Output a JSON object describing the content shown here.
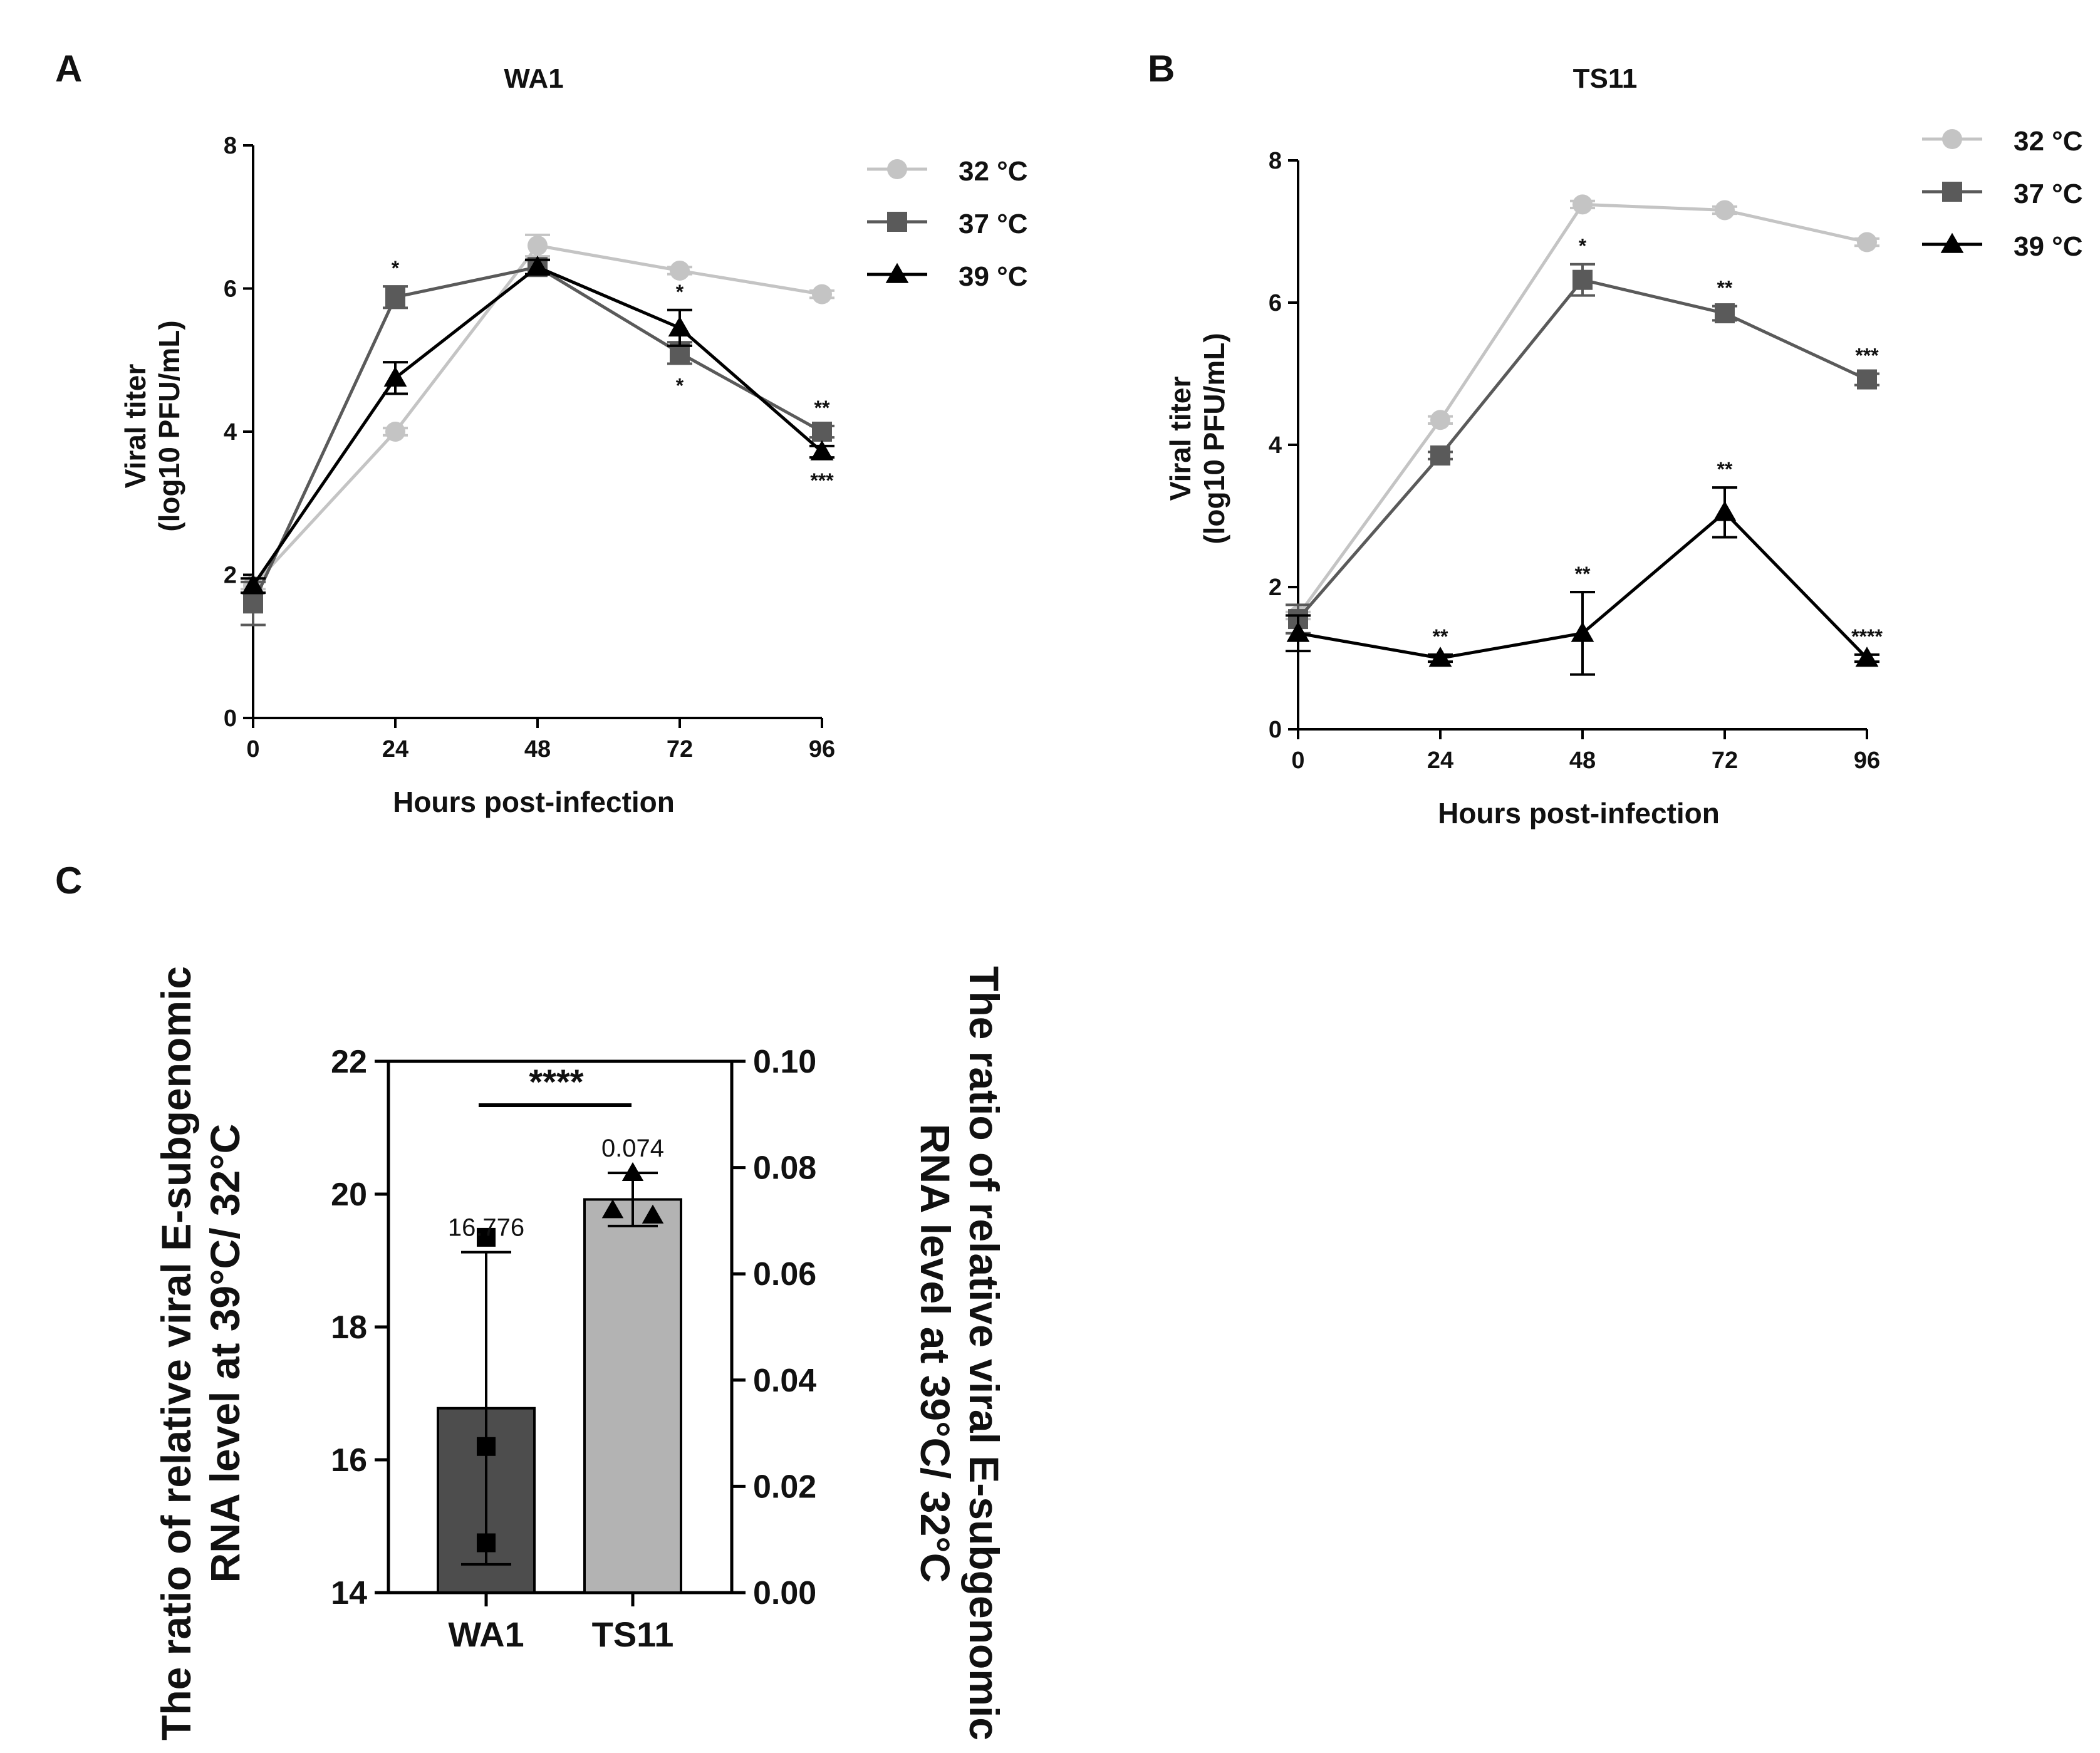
{
  "colors": {
    "c32": "#c4c4c4",
    "c37": "#5a5a5a",
    "c39": "#000000",
    "barWA1": "#4d4d4d",
    "barTS11": "#b3b3b3"
  },
  "legend": [
    "32 °C",
    "37 °C",
    "39 °C"
  ],
  "chart_data": [
    {
      "id": "A",
      "panel_letter": "A",
      "type": "line",
      "title": "WA1",
      "xlabel": "Hours post-infection",
      "ylabel_line1": "Viral titer",
      "ylabel_line2": "(log10 PFU/mL)",
      "x": [
        0,
        24,
        48,
        72,
        96
      ],
      "xticks": [
        "0",
        "24",
        "48",
        "72",
        "96"
      ],
      "yticks": [
        "0",
        "2",
        "4",
        "6",
        "8"
      ],
      "xlim": [
        0,
        96
      ],
      "ylim": [
        0,
        8
      ],
      "legend_position": "right",
      "series": [
        {
          "name": "32 °C",
          "marker": "circle",
          "values": [
            1.85,
            4.0,
            6.6,
            6.25,
            5.92
          ],
          "err": [
            0.05,
            0.05,
            0.15,
            0.05,
            0.05
          ],
          "sig": [
            "",
            "",
            "",
            "",
            ""
          ]
        },
        {
          "name": "37 °C",
          "marker": "square",
          "values": [
            1.6,
            5.88,
            6.3,
            5.1,
            4.0
          ],
          "err": [
            0.3,
            0.15,
            0.1,
            0.15,
            0.08
          ],
          "sig": [
            "",
            "*",
            "",
            "*",
            "**"
          ]
        },
        {
          "name": "39 °C",
          "marker": "triangle",
          "values": [
            1.85,
            4.75,
            6.3,
            5.45,
            3.72
          ],
          "err": [
            0.1,
            0.22,
            0.1,
            0.25,
            0.08
          ],
          "sig": [
            "",
            "",
            "",
            "*",
            "***"
          ]
        }
      ]
    },
    {
      "id": "B",
      "panel_letter": "B",
      "type": "line",
      "title": "TS11",
      "xlabel": "Hours post-infection",
      "ylabel_line1": "Viral titer",
      "ylabel_line2": "(log10 PFU/mL)",
      "x": [
        0,
        24,
        48,
        72,
        96
      ],
      "xticks": [
        "0",
        "24",
        "48",
        "72",
        "96"
      ],
      "yticks": [
        "0",
        "2",
        "4",
        "6",
        "8"
      ],
      "xlim": [
        0,
        96
      ],
      "ylim": [
        0,
        8
      ],
      "legend_position": "top-right",
      "series": [
        {
          "name": "32 °C",
          "marker": "circle",
          "values": [
            1.6,
            4.35,
            7.38,
            7.3,
            6.85
          ],
          "err": [
            0.05,
            0.05,
            0.05,
            0.05,
            0.05
          ],
          "sig": [
            "",
            "",
            "",
            "",
            ""
          ]
        },
        {
          "name": "37 °C",
          "marker": "square",
          "values": [
            1.55,
            3.85,
            6.32,
            5.85,
            4.92
          ],
          "err": [
            0.2,
            0.05,
            0.22,
            0.1,
            0.08
          ],
          "sig": [
            "",
            "",
            "*",
            "**",
            "***"
          ]
        },
        {
          "name": "39 °C",
          "marker": "triangle",
          "values": [
            1.35,
            1.0,
            1.35,
            3.05,
            1.0
          ],
          "err": [
            0.25,
            0.05,
            0.58,
            0.35,
            0.05
          ],
          "sig": [
            "",
            "**",
            "**",
            "**",
            "****"
          ]
        }
      ]
    },
    {
      "id": "C",
      "panel_letter": "C",
      "type": "bar",
      "categories": [
        "WA1",
        "TS11"
      ],
      "values": [
        16.776,
        0.074
      ],
      "value_labels": [
        "16.776",
        "0.074"
      ],
      "axis": [
        "left",
        "right"
      ],
      "err": [
        2.35,
        0.005
      ],
      "points": [
        [
          19.35,
          16.2,
          14.75
        ],
        [
          0.072,
          0.071,
          0.079
        ]
      ],
      "point_markers": [
        "square",
        "triangle"
      ],
      "left_ylim": [
        14,
        22
      ],
      "right_ylim": [
        0,
        0.1
      ],
      "left_yticks": [
        "14",
        "16",
        "18",
        "20",
        "22"
      ],
      "right_yticks": [
        "0.00",
        "0.02",
        "0.04",
        "0.06",
        "0.08",
        "0.10"
      ],
      "ylabel_left_line1": "The ratio of relative viral E-subgenomic",
      "ylabel_left_line2": "RNA level at 39°C/ 32°C",
      "ylabel_right_line1": "The ratio of relative viral E-subgenomic",
      "ylabel_right_line2": "RNA level at 39°C/ 32°C",
      "significance": "****"
    }
  ]
}
